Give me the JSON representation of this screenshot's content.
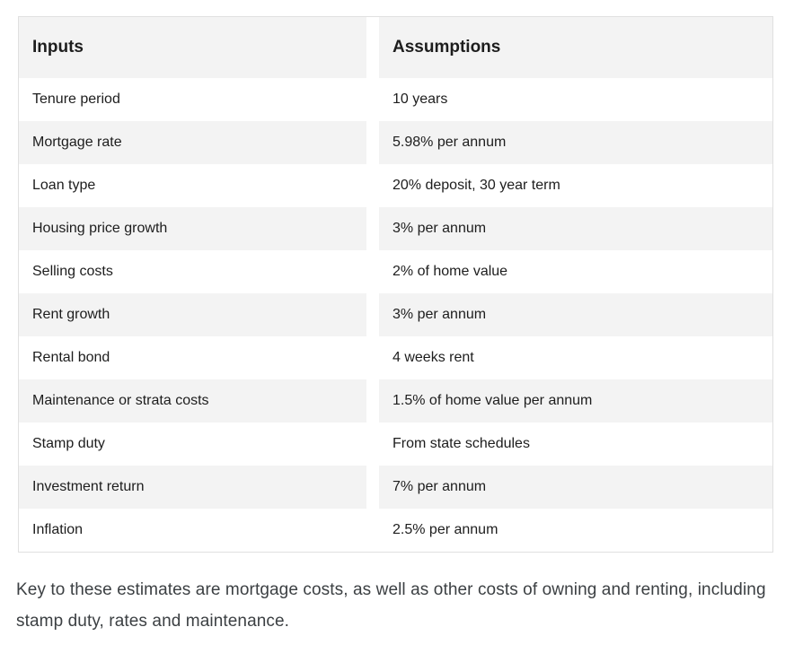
{
  "table": {
    "columns": [
      {
        "header": "Inputs"
      },
      {
        "header": "Assumptions"
      }
    ],
    "rows": [
      {
        "input": "Tenure period",
        "assumption": "10 years"
      },
      {
        "input": "Mortgage rate",
        "assumption": "5.98% per annum"
      },
      {
        "input": "Loan type",
        "assumption": "20% deposit, 30 year term"
      },
      {
        "input": "Housing price growth",
        "assumption": "3% per annum"
      },
      {
        "input": "Selling costs",
        "assumption": "2% of home value"
      },
      {
        "input": "Rent growth",
        "assumption": "3% per annum"
      },
      {
        "input": "Rental bond",
        "assumption": "4 weeks rent"
      },
      {
        "input": "Maintenance or strata costs",
        "assumption": "1.5% of home value per annum"
      },
      {
        "input": "Stamp duty",
        "assumption": "From state schedules"
      },
      {
        "input": "Investment return",
        "assumption": "7% per annum"
      },
      {
        "input": "Inflation",
        "assumption": "2.5% per annum"
      }
    ]
  },
  "paragraph": "Key to these estimates are mortgage costs, as well as other costs of owning and renting, including stamp duty, rates and maintenance.",
  "colors": {
    "row_shade": "#f3f3f3",
    "table_border": "#e0e0e0",
    "table_text": "#1d1d1d",
    "paragraph_text": "#3c4043",
    "page_bg": "#ffffff"
  }
}
